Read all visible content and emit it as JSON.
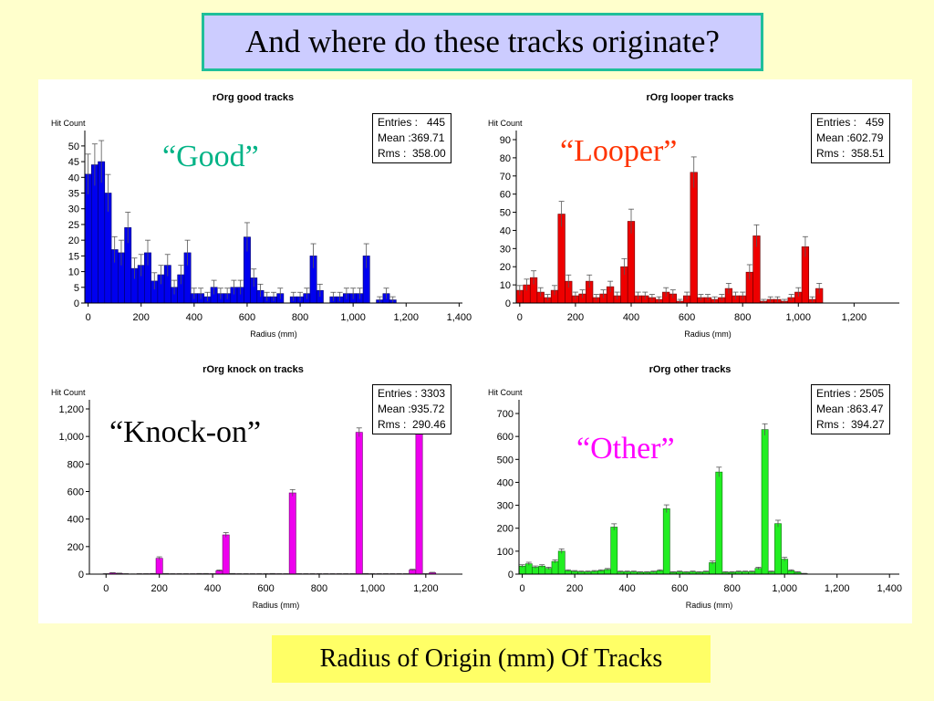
{
  "slide": {
    "title": "And where do these tracks originate?",
    "footer": "Radius of Origin (mm) Of Tracks"
  },
  "captions": {
    "good": "“Good”",
    "looper": "“Looper”",
    "knock": "“Knock-on”",
    "other": "“Other”"
  },
  "chart_data": [
    {
      "type": "bar",
      "title": "rOrg good tracks",
      "xlabel": "Radius (mm)",
      "ylabel": "Hit Count",
      "color": "#0000ee",
      "caption_color": "#00b386",
      "bin_width": 25,
      "xlim": [
        -12.5,
        1412.5
      ],
      "ylim": [
        0,
        52
      ],
      "x_ticks": [
        0,
        200,
        400,
        600,
        800,
        1000,
        1200,
        1400
      ],
      "x_tick_labels": [
        "0",
        "200",
        "400",
        "600",
        "800",
        "1,000",
        "1,200",
        "1,400"
      ],
      "y_ticks": [
        0,
        5,
        10,
        15,
        20,
        25,
        30,
        35,
        40,
        45,
        50
      ],
      "y_tick_labels": [
        "0",
        "5",
        "10",
        "15",
        "20",
        "25",
        "30",
        "35",
        "40",
        "45",
        "50"
      ],
      "stats": {
        "entries": "Entries :   445",
        "mean": "Mean :369.71",
        "rms": "Rms :  358.00"
      },
      "values": [
        41,
        44,
        45,
        35,
        17,
        16,
        24,
        11,
        12,
        16,
        7,
        9,
        12,
        5,
        9,
        16,
        3,
        3,
        2,
        5,
        3,
        3,
        5,
        5,
        21,
        8,
        4,
        2,
        2,
        3,
        0,
        2,
        2,
        3,
        15,
        4,
        0,
        2,
        2,
        3,
        3,
        3,
        15,
        0,
        1,
        3,
        1,
        0,
        0,
        0,
        0,
        0,
        0,
        0,
        0,
        0,
        0
      ]
    },
    {
      "type": "bar",
      "title": "rOrg looper tracks",
      "xlabel": "Radius (mm)",
      "ylabel": "Hit Count",
      "color": "#ee0000",
      "caption_color": "#ff3300",
      "bin_width": 25,
      "xlim": [
        -12.5,
        1362.5
      ],
      "ylim": [
        0,
        90
      ],
      "x_ticks": [
        0,
        200,
        400,
        600,
        800,
        1000,
        1200
      ],
      "x_tick_labels": [
        "0",
        "200",
        "400",
        "600",
        "800",
        "1,000",
        "1,200"
      ],
      "y_ticks": [
        0,
        10,
        20,
        30,
        40,
        50,
        60,
        70,
        80,
        90
      ],
      "y_tick_labels": [
        "0",
        "10",
        "20",
        "30",
        "40",
        "50",
        "60",
        "70",
        "80",
        "90"
      ],
      "stats": {
        "entries": "Entries :   459",
        "mean": "Mean :602.79",
        "rms": "Rms :  358.51"
      },
      "values": [
        7,
        10,
        14,
        6,
        3,
        7,
        49,
        12,
        4,
        5,
        12,
        3,
        5,
        9,
        4,
        20,
        45,
        4,
        4,
        3,
        2,
        6,
        5,
        1,
        4,
        72,
        3,
        3,
        2,
        3,
        8,
        4,
        4,
        17,
        37,
        1,
        2,
        2,
        1,
        3,
        6,
        31,
        2,
        8,
        0,
        0,
        0,
        0,
        0,
        0,
        0,
        0,
        0,
        0,
        0
      ]
    },
    {
      "type": "bar",
      "title": "rOrg knock on tracks",
      "xlabel": "Radius (mm)",
      "ylabel": "Hit Count",
      "color": "#ee00ee",
      "caption_color": "#000000",
      "bin_width": 25,
      "xlim": [
        -62.5,
        1337.5
      ],
      "ylim": [
        0,
        1200
      ],
      "x_ticks": [
        0,
        200,
        400,
        600,
        800,
        1000,
        1200
      ],
      "x_tick_labels": [
        "0",
        "200",
        "400",
        "600",
        "800",
        "1,000",
        "1,200"
      ],
      "y_ticks": [
        0,
        200,
        400,
        600,
        800,
        1000,
        1200
      ],
      "y_tick_labels": [
        "0",
        "200",
        "400",
        "600",
        "800",
        "1,000",
        "1,200"
      ],
      "stats": {
        "entries": "Entries : 3303",
        "mean": "Mean :935.72",
        "rms": "Rms :  290.46"
      },
      "values": [
        2,
        8,
        5,
        2,
        1,
        2,
        2,
        3,
        115,
        3,
        2,
        2,
        2,
        2,
        3,
        3,
        2,
        25,
        285,
        3,
        2,
        2,
        2,
        2,
        2,
        3,
        2,
        2,
        590,
        2,
        2,
        2,
        2,
        2,
        2,
        2,
        2,
        2,
        1030,
        3,
        2,
        2,
        2,
        2,
        2,
        2,
        30,
        1140,
        2,
        10,
        0,
        0,
        0,
        0,
        0,
        0
      ]
    },
    {
      "type": "bar",
      "title": "rOrg other tracks",
      "xlabel": "Radius (mm)",
      "ylabel": "Hit Count",
      "color": "#22ee22",
      "caption_color": "#ff00ff",
      "bin_width": 25,
      "xlim": [
        -12.5,
        1437.5
      ],
      "ylim": [
        0,
        720
      ],
      "x_ticks": [
        0,
        200,
        400,
        600,
        800,
        1000,
        1200,
        1400
      ],
      "x_tick_labels": [
        "0",
        "200",
        "400",
        "600",
        "800",
        "1,000",
        "1,200",
        "1,400"
      ],
      "y_ticks": [
        0,
        100,
        200,
        300,
        400,
        500,
        600,
        700
      ],
      "y_tick_labels": [
        "0",
        "100",
        "200",
        "300",
        "400",
        "500",
        "600",
        "700"
      ],
      "stats": {
        "entries": "Entries : 2505",
        "mean": "Mean :863.47",
        "rms": "Rms :  394.27"
      },
      "values": [
        35,
        45,
        30,
        35,
        25,
        55,
        100,
        15,
        12,
        10,
        10,
        12,
        15,
        20,
        205,
        10,
        10,
        10,
        8,
        8,
        10,
        15,
        285,
        8,
        10,
        8,
        10,
        8,
        10,
        50,
        445,
        8,
        8,
        10,
        10,
        10,
        25,
        630,
        10,
        220,
        65,
        15,
        8,
        2,
        0,
        0,
        0,
        0,
        0,
        0,
        0,
        0,
        0,
        0,
        0,
        0,
        0,
        0
      ]
    }
  ]
}
